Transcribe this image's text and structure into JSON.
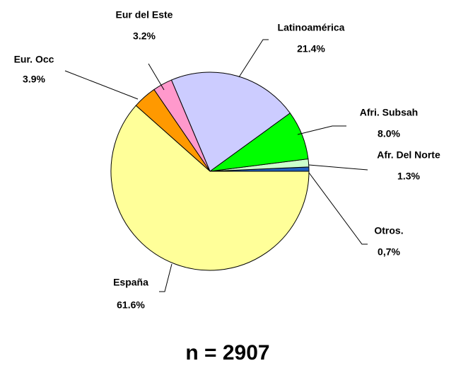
{
  "chart_data": {
    "type": "pie",
    "categories": [
      "Otros.",
      "Afr. Del Norte",
      "Afri. Subsah",
      "Latinoamérica",
      "Eur del Este",
      "Eur. Occ",
      "España"
    ],
    "values": [
      0.7,
      1.3,
      8.0,
      21.4,
      3.2,
      3.9,
      61.6
    ],
    "value_labels": [
      "0,7%",
      "1.3%",
      "8.0%",
      "21.4%",
      "3.2%",
      "3.9%",
      "61.6%"
    ],
    "colors": [
      "#1f5fbf",
      "#ccffcc",
      "#00ff00",
      "#ccccff",
      "#ff99cc",
      "#ff9900",
      "#ffff99"
    ],
    "note": "n = 2907"
  }
}
